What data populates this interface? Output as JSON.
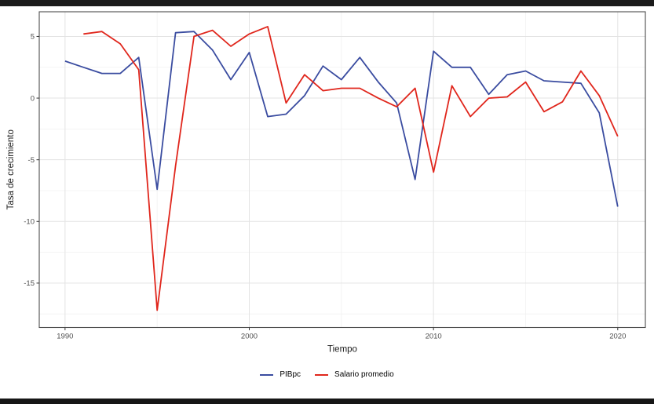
{
  "frame": {
    "top_bar_color": "#1b1b1b",
    "bottom_bar_color": "#161616",
    "background": "#ffffff"
  },
  "styles": {
    "panel_background": "#ffffff",
    "panel_border": "#4d4d4d",
    "grid_major": "#e3e3e3",
    "grid_minor": "#f1f1f1",
    "tick_color": "#333333",
    "tick_label_color": "#4d4d4d",
    "axis_title_color": "#1a1a1a",
    "pibpc_color": "#3a4ca0",
    "salario_color": "#e0261c"
  },
  "chart_data": {
    "type": "line",
    "title": "",
    "xlabel": "Tiempo",
    "ylabel": "Tasa de crecimiento",
    "xlim": [
      1988.6,
      2021.5
    ],
    "ylim": [
      -18.6,
      7.0
    ],
    "x_ticks": [
      1990,
      2000,
      2010,
      2020
    ],
    "x_minor_ticks": [
      1995,
      2005,
      2015
    ],
    "y_ticks": [
      5,
      0,
      -5,
      -10,
      -15
    ],
    "y_minor_ticks": [
      2.5,
      -2.5,
      -7.5,
      -12.5,
      -17.5
    ],
    "grid": true,
    "legend_position": "bottom",
    "series": [
      {
        "name": "PIBpc",
        "color": "#3a4ca0",
        "x": [
          1990,
          1991,
          1992,
          1993,
          1994,
          1995,
          1996,
          1997,
          1998,
          1999,
          2000,
          2001,
          2002,
          2003,
          2004,
          2005,
          2006,
          2007,
          2008,
          2009,
          2010,
          2011,
          2012,
          2013,
          2014,
          2015,
          2016,
          2017,
          2018,
          2019,
          2020
        ],
        "values": [
          3.0,
          2.5,
          2.0,
          2.0,
          3.3,
          -7.4,
          5.3,
          5.4,
          3.9,
          1.5,
          3.7,
          -1.5,
          -1.3,
          0.2,
          2.6,
          1.5,
          3.3,
          1.3,
          -0.4,
          -6.6,
          3.8,
          2.5,
          2.5,
          0.3,
          1.9,
          2.2,
          1.4,
          1.3,
          1.2,
          -1.2,
          -8.8
        ]
      },
      {
        "name": "Salario promedio",
        "color": "#e0261c",
        "x": [
          1991,
          1992,
          1993,
          1994,
          1995,
          1996,
          1997,
          1998,
          1999,
          2000,
          2001,
          2002,
          2003,
          2004,
          2005,
          2006,
          2007,
          2008,
          2009,
          2010,
          2011,
          2012,
          2013,
          2014,
          2015,
          2016,
          2017,
          2018,
          2019,
          2020
        ],
        "values": [
          5.2,
          5.4,
          4.4,
          2.3,
          -17.2,
          -5.5,
          5.0,
          5.5,
          4.2,
          5.2,
          5.8,
          -0.4,
          1.9,
          0.6,
          0.8,
          0.8,
          0.0,
          -0.7,
          0.8,
          -6.0,
          1.0,
          -1.5,
          0.0,
          0.1,
          1.3,
          -1.1,
          -0.3,
          2.2,
          0.2,
          -3.1
        ]
      }
    ]
  }
}
